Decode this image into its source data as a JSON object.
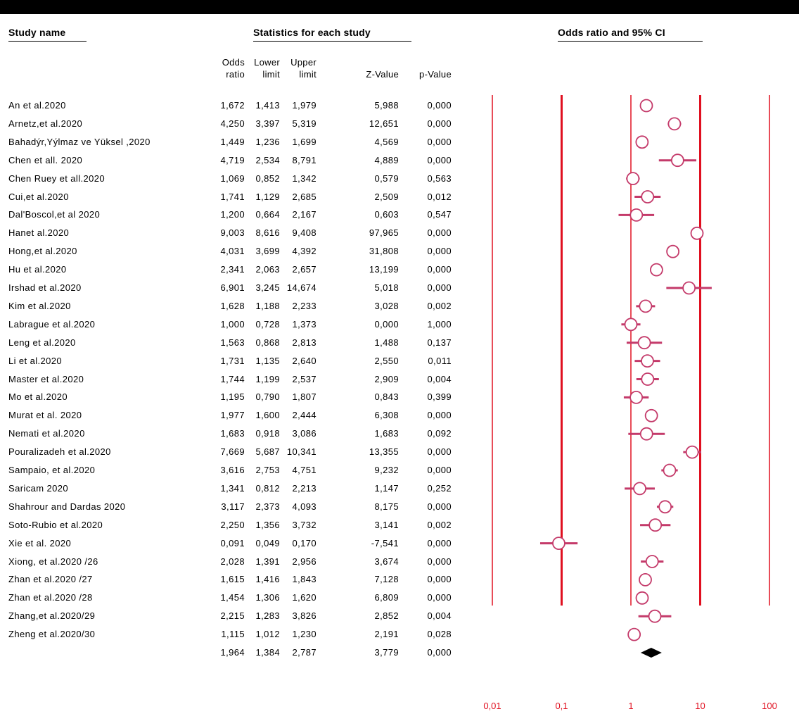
{
  "headers": {
    "study_name": "Study name",
    "statistics": "Statistics for each study",
    "plot": "Odds ratio and 95% CI"
  },
  "columns": {
    "odds_ratio": [
      "Odds",
      "ratio"
    ],
    "lower_limit": [
      "Lower",
      "limit"
    ],
    "upper_limit": [
      "Upper",
      "limit"
    ],
    "z_value": "Z-Value",
    "p_value": "p-Value"
  },
  "chart_data": {
    "type": "forest",
    "title": "Odds ratio and 95% CI",
    "x_scale": "log",
    "xlim": [
      0.01,
      100
    ],
    "x_ticks": [
      "0,01",
      "0,1",
      "1",
      "10",
      "100"
    ],
    "x_tick_values": [
      0.01,
      0.1,
      1,
      10,
      100
    ],
    "colors": {
      "study_marker": "#c43a6a",
      "summary": "#000000",
      "gridline": "#e01020"
    },
    "studies": [
      {
        "name": "An et al.2020",
        "or": "1,672",
        "lower": "1,413",
        "upper": "1,979",
        "z": "5,988",
        "p": "0,000",
        "or_val": 1.672,
        "lo_val": 1.413,
        "hi_val": 1.979
      },
      {
        "name": "Arnetz,et al.2020",
        "or": "4,250",
        "lower": "3,397",
        "upper": "5,319",
        "z": "12,651",
        "p": "0,000",
        "or_val": 4.25,
        "lo_val": 3.397,
        "hi_val": 5.319
      },
      {
        "name": "Bahadýr,Yýlmaz ve Yüksel ,2020",
        "or": "1,449",
        "lower": "1,236",
        "upper": "1,699",
        "z": "4,569",
        "p": "0,000",
        "or_val": 1.449,
        "lo_val": 1.236,
        "hi_val": 1.699
      },
      {
        "name": "Chen et all. 2020",
        "or": "4,719",
        "lower": "2,534",
        "upper": "8,791",
        "z": "4,889",
        "p": "0,000",
        "or_val": 4.719,
        "lo_val": 2.534,
        "hi_val": 8.791
      },
      {
        "name": "Chen Ruey  et all.2020",
        "or": "1,069",
        "lower": "0,852",
        "upper": "1,342",
        "z": "0,579",
        "p": "0,563",
        "or_val": 1.069,
        "lo_val": 0.852,
        "hi_val": 1.342
      },
      {
        "name": "Cui,et al.2020",
        "or": "1,741",
        "lower": "1,129",
        "upper": "2,685",
        "z": "2,509",
        "p": "0,012",
        "or_val": 1.741,
        "lo_val": 1.129,
        "hi_val": 2.685
      },
      {
        "name": "Dal'Boscol,et al 2020",
        "or": "1,200",
        "lower": "0,664",
        "upper": "2,167",
        "z": "0,603",
        "p": "0,547",
        "or_val": 1.2,
        "lo_val": 0.664,
        "hi_val": 2.167
      },
      {
        "name": "Hanet al.2020",
        "or": "9,003",
        "lower": "8,616",
        "upper": "9,408",
        "z": "97,965",
        "p": "0,000",
        "or_val": 9.003,
        "lo_val": 8.616,
        "hi_val": 9.408
      },
      {
        "name": "Hong,et al.2020",
        "or": "4,031",
        "lower": "3,699",
        "upper": "4,392",
        "z": "31,808",
        "p": "0,000",
        "or_val": 4.031,
        "lo_val": 3.699,
        "hi_val": 4.392
      },
      {
        "name": "Hu et al.2020",
        "or": "2,341",
        "lower": "2,063",
        "upper": "2,657",
        "z": "13,199",
        "p": "0,000",
        "or_val": 2.341,
        "lo_val": 2.063,
        "hi_val": 2.657
      },
      {
        "name": "Irshad et al.2020",
        "or": "6,901",
        "lower": "3,245",
        "upper": "14,674",
        "z": "5,018",
        "p": "0,000",
        "or_val": 6.901,
        "lo_val": 3.245,
        "hi_val": 14.674
      },
      {
        "name": "Kim et al.2020",
        "or": "1,628",
        "lower": "1,188",
        "upper": "2,233",
        "z": "3,028",
        "p": "0,002",
        "or_val": 1.628,
        "lo_val": 1.188,
        "hi_val": 2.233
      },
      {
        "name": "Labrague et al.2020",
        "or": "1,000",
        "lower": "0,728",
        "upper": "1,373",
        "z": "0,000",
        "p": "1,000",
        "or_val": 1.0,
        "lo_val": 0.728,
        "hi_val": 1.373
      },
      {
        "name": "Leng et al.2020",
        "or": "1,563",
        "lower": "0,868",
        "upper": "2,813",
        "z": "1,488",
        "p": "0,137",
        "or_val": 1.563,
        "lo_val": 0.868,
        "hi_val": 2.813
      },
      {
        "name": "Li et al.2020",
        "or": "1,731",
        "lower": "1,135",
        "upper": "2,640",
        "z": "2,550",
        "p": "0,011",
        "or_val": 1.731,
        "lo_val": 1.135,
        "hi_val": 2.64
      },
      {
        "name": "Master et al.2020",
        "or": "1,744",
        "lower": "1,199",
        "upper": "2,537",
        "z": "2,909",
        "p": "0,004",
        "or_val": 1.744,
        "lo_val": 1.199,
        "hi_val": 2.537
      },
      {
        "name": "Mo et al.2020",
        "or": "1,195",
        "lower": "0,790",
        "upper": "1,807",
        "z": "0,843",
        "p": "0,399",
        "or_val": 1.195,
        "lo_val": 0.79,
        "hi_val": 1.807
      },
      {
        "name": "Murat et al. 2020",
        "or": "1,977",
        "lower": "1,600",
        "upper": "2,444",
        "z": "6,308",
        "p": "0,000",
        "or_val": 1.977,
        "lo_val": 1.6,
        "hi_val": 2.444
      },
      {
        "name": "Nemati et al.2020",
        "or": "1,683",
        "lower": "0,918",
        "upper": "3,086",
        "z": "1,683",
        "p": "0,092",
        "or_val": 1.683,
        "lo_val": 0.918,
        "hi_val": 3.086
      },
      {
        "name": "Pouralizadeh et al.2020",
        "or": "7,669",
        "lower": "5,687",
        "upper": "10,341",
        "z": "13,355",
        "p": "0,000",
        "or_val": 7.669,
        "lo_val": 5.687,
        "hi_val": 10.341
      },
      {
        "name": "Sampaio, et al.2020",
        "or": "3,616",
        "lower": "2,753",
        "upper": "4,751",
        "z": "9,232",
        "p": "0,000",
        "or_val": 3.616,
        "lo_val": 2.753,
        "hi_val": 4.751
      },
      {
        "name": "Saricam 2020",
        "or": "1,341",
        "lower": "0,812",
        "upper": "2,213",
        "z": "1,147",
        "p": "0,252",
        "or_val": 1.341,
        "lo_val": 0.812,
        "hi_val": 2.213
      },
      {
        "name": "Shahrour and Dardas  2020",
        "or": "3,117",
        "lower": "2,373",
        "upper": "4,093",
        "z": "8,175",
        "p": "0,000",
        "or_val": 3.117,
        "lo_val": 2.373,
        "hi_val": 4.093
      },
      {
        "name": "Soto-Rubio et al.2020",
        "or": "2,250",
        "lower": "1,356",
        "upper": "3,732",
        "z": "3,141",
        "p": "0,002",
        "or_val": 2.25,
        "lo_val": 1.356,
        "hi_val": 3.732
      },
      {
        "name": "Xie et al. 2020",
        "or": "0,091",
        "lower": "0,049",
        "upper": "0,170",
        "z": "-7,541",
        "p": "0,000",
        "or_val": 0.091,
        "lo_val": 0.049,
        "hi_val": 0.17
      },
      {
        "name": "Xiong,  et al.2020 /26",
        "or": "2,028",
        "lower": "1,391",
        "upper": "2,956",
        "z": "3,674",
        "p": "0,000",
        "or_val": 2.028,
        "lo_val": 1.391,
        "hi_val": 2.956
      },
      {
        "name": "Zhan et al.2020 /27",
        "or": "1,615",
        "lower": "1,416",
        "upper": "1,843",
        "z": "7,128",
        "p": "0,000",
        "or_val": 1.615,
        "lo_val": 1.416,
        "hi_val": 1.843
      },
      {
        "name": "Zhan et al.2020 /28",
        "or": "1,454",
        "lower": "1,306",
        "upper": "1,620",
        "z": "6,809",
        "p": "0,000",
        "or_val": 1.454,
        "lo_val": 1.306,
        "hi_val": 1.62
      },
      {
        "name": "Zhang,et al.2020/29",
        "or": "2,215",
        "lower": "1,283",
        "upper": "3,826",
        "z": "2,852",
        "p": "0,004",
        "or_val": 2.215,
        "lo_val": 1.283,
        "hi_val": 3.826
      },
      {
        "name": "Zheng et al.2020/30",
        "or": "1,115",
        "lower": "1,012",
        "upper": "1,230",
        "z": "2,191",
        "p": "0,028",
        "or_val": 1.115,
        "lo_val": 1.012,
        "hi_val": 1.23
      }
    ],
    "summary": {
      "name": "",
      "or": "1,964",
      "lower": "1,384",
      "upper": "2,787",
      "z": "3,779",
      "p": "0,000",
      "or_val": 1.964,
      "lo_val": 1.384,
      "hi_val": 2.787
    }
  }
}
